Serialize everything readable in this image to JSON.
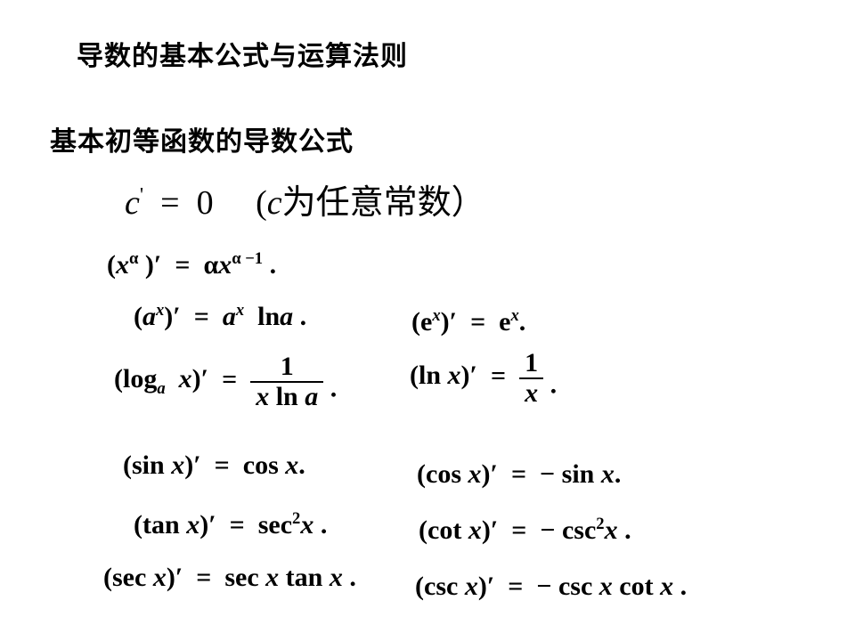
{
  "title": "导数的基本公式与运算法则",
  "subtitle": "基本初等函数的导数公式",
  "colors": {
    "text": "#000000",
    "background": "#ffffff"
  },
  "typography": {
    "title_fontsize": 30,
    "subtitle_fontsize": 30,
    "formula_fontsize": 30,
    "big_formula_fontsize": 38,
    "font_family": "Times New Roman / SimSun",
    "weight": "bold"
  },
  "formulas": {
    "constant": {
      "lhs_var": "c",
      "rhs": "0",
      "note_prefix": "(",
      "note_var": "c",
      "note_suffix": "为任意常数）"
    },
    "power": {
      "base": "x",
      "exp": "α",
      "rhs_coef": "α",
      "rhs_base": "x",
      "rhs_exp": "α −1",
      "tail": "."
    },
    "ax": {
      "base": "a",
      "exp": "x",
      "rhs_base": "a",
      "rhs_exp": "x",
      "rhs_tail_var": "a",
      "ln": "ln",
      "tail": " ."
    },
    "ex": {
      "base": "e",
      "exp": "x",
      "rhs_base": "e",
      "rhs_exp": "x",
      "tail": "."
    },
    "log": {
      "fn": "log",
      "sub": "a",
      "arg": "x",
      "num": "1",
      "den_x": "x",
      "den_ln": "ln",
      "den_a": "a",
      "tail": "."
    },
    "ln": {
      "fn": "ln",
      "arg": "x",
      "num": "1",
      "den": "x",
      "tail": "."
    },
    "sin": {
      "lhs_fn": "sin",
      "lhs_arg": "x",
      "rhs_fn": "cos",
      "rhs_arg": "x",
      "tail": "."
    },
    "cos": {
      "lhs_fn": "cos",
      "lhs_arg": "x",
      "neg": "−",
      "rhs_fn": "sin",
      "rhs_arg": "x",
      "tail": "."
    },
    "tan": {
      "lhs_fn": "tan",
      "lhs_arg": "x",
      "rhs_fn": "sec",
      "rhs_exp": "2",
      "rhs_arg": "x",
      "tail": " ."
    },
    "cot": {
      "lhs_fn": "cot",
      "lhs_arg": "x",
      "neg": "−",
      "rhs_fn": "csc",
      "rhs_exp": "2",
      "rhs_arg": "x",
      "tail": " ."
    },
    "sec": {
      "lhs_fn": "sec",
      "lhs_arg": "x",
      "rhs_a_fn": "sec",
      "rhs_a_arg": "x",
      "rhs_b_fn": "tan",
      "rhs_b_arg": "x",
      "tail": " ."
    },
    "csc": {
      "lhs_fn": "csc",
      "lhs_arg": "x",
      "neg": "−",
      "rhs_a_fn": "csc",
      "rhs_a_arg": "x",
      "rhs_b_fn": "cot",
      "rhs_b_arg": "x",
      "tail": " ."
    }
  },
  "symbols": {
    "eq": "=",
    "prime": "′",
    "lp": "(",
    "rp": ")",
    "sp_prime": "'"
  }
}
